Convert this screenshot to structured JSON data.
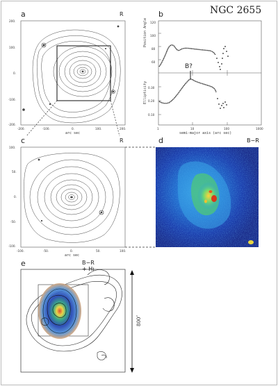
{
  "title": "NGC 2655",
  "panels": {
    "a": {
      "label": "a",
      "band": "R",
      "xlabel": "arc sec",
      "xticks": [
        "-200.",
        "-100.",
        "0.",
        "100.",
        "200."
      ],
      "yticks": [
        "200.",
        "100.",
        "0.",
        "-100.",
        "-200."
      ]
    },
    "b": {
      "label": "b",
      "ylabel_top": "Position Angle",
      "ylabel_bottom": "Ellipticity",
      "xlabel": "semi-major axis (arc sec)",
      "annotation": "B?",
      "yticks_top": [
        "120",
        "100",
        "80",
        "60"
      ],
      "yticks_bottom": [
        "0.30",
        "0.20",
        "0.10"
      ],
      "xticks": [
        "1",
        "10",
        "100",
        "1000"
      ]
    },
    "c": {
      "label": "c",
      "band": "R",
      "xlabel": "arc sec",
      "xticks": [
        "-100.",
        "-50.",
        "0.",
        "50.",
        "100."
      ],
      "yticks": [
        "100.",
        "50.",
        "0.",
        "-50.",
        "-100."
      ]
    },
    "d": {
      "label": "d",
      "band": "B−R"
    },
    "e": {
      "label": "e",
      "band": "B−R + Hı",
      "scale": "800″"
    }
  },
  "colors": {
    "cmap_low": "#1c1a8c",
    "cmap_mid": "#1e6fd8",
    "cmap_high": "#e4d23a",
    "cmap_peak": "#d83a1a"
  }
}
